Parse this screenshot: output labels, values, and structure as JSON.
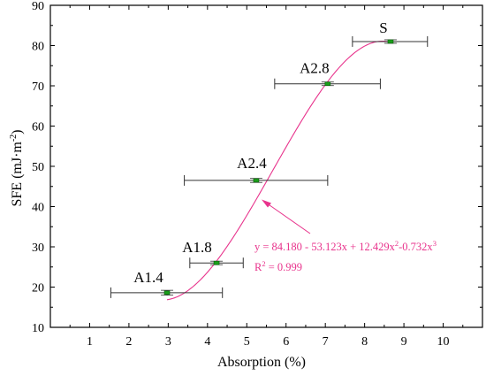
{
  "chart_data": {
    "type": "scatter",
    "title": "",
    "xlabel": "Absorption (%)",
    "ylabel_main": "SFE (mJ·m",
    "ylabel_sup": "-2",
    "ylabel_close": ")",
    "xlim": [
      0,
      11
    ],
    "ylim": [
      10,
      90
    ],
    "xticks": [
      "1",
      "2",
      "3",
      "4",
      "5",
      "6",
      "7",
      "8",
      "9",
      "10"
    ],
    "yticks": [
      "10",
      "20",
      "30",
      "40",
      "50",
      "60",
      "70",
      "80",
      "90"
    ],
    "grid": false,
    "points": [
      {
        "label": "A1.4",
        "x": 2.97,
        "y": 18.6,
        "xerr": [
          1.54,
          4.38
        ],
        "yerr": 0.6
      },
      {
        "label": "A1.8",
        "x": 4.23,
        "y": 26.0,
        "xerr": [
          3.55,
          4.91
        ],
        "yerr": 0.4
      },
      {
        "label": "A2.4",
        "x": 5.24,
        "y": 46.5,
        "xerr": [
          3.41,
          7.06
        ],
        "yerr": 0.5
      },
      {
        "label": "A2.8",
        "x": 7.06,
        "y": 70.5,
        "xerr": [
          5.71,
          8.4
        ],
        "yerr": 0.4
      },
      {
        "label": "S",
        "x": 8.66,
        "y": 81.0,
        "xerr": [
          7.69,
          9.6
        ],
        "yerr": 0.3
      }
    ],
    "fit": {
      "coefficients": [
        84.18,
        -53.123,
        12.429,
        -0.732
      ],
      "x_range": [
        2.97,
        8.66
      ],
      "color": "#e8338c"
    },
    "annotation": {
      "equation_main": "y = 84.180 - 53.123x + 12.429x",
      "equation_sup1": "2",
      "equation_mid": "-0.732x",
      "equation_sup2": "3",
      "r2_main": "R",
      "r2_sup": "2",
      "r2_rest": " = 0.999",
      "color": "#e8338c"
    },
    "colors": {
      "marker": "#1a9e1a",
      "errorbar": "#333333",
      "axis": "#000000"
    }
  }
}
